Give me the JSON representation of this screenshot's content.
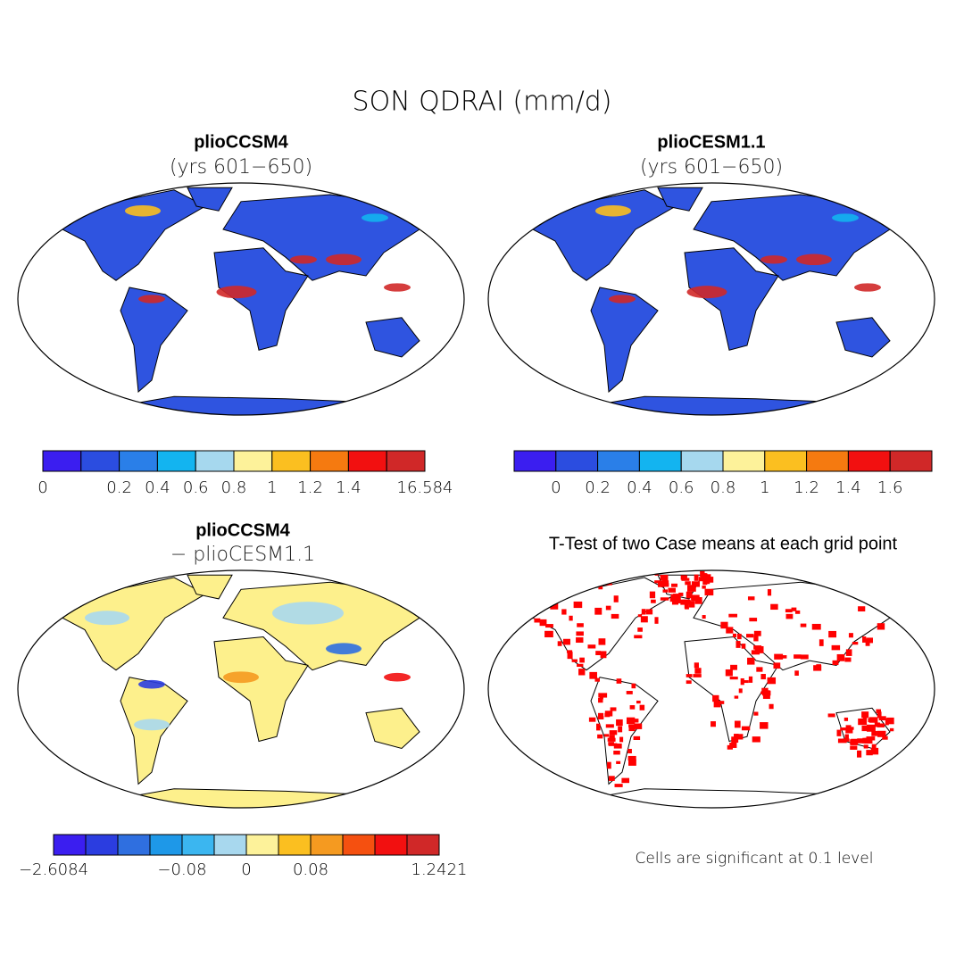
{
  "title": "SON QDRAI (mm/d)",
  "panels": [
    {
      "title": "plioCCSM4",
      "subtitle": "(yrs 601−650)"
    },
    {
      "title": "plioCESM1.1",
      "subtitle": "(yrs 601−650)"
    },
    {
      "title": "plioCCSM4",
      "subtitle": "− plioCESM1.1"
    },
    {
      "title": "T-Test of two Case means at each grid point"
    }
  ],
  "colorbars": [
    {
      "colors": [
        "#3b1ef0",
        "#2b4de0",
        "#2a7fe8",
        "#13b4f0",
        "#a6d8ee",
        "#fdf29a",
        "#fbbf20",
        "#f57a10",
        "#f21010",
        "#d02828"
      ],
      "labels": [
        "0",
        null,
        "0.2",
        "0.4",
        "0.6",
        "0.8",
        "1",
        "1.2",
        "1.4",
        null,
        "16.584"
      ]
    },
    {
      "colors": [
        "#3b1ef0",
        "#2b4de0",
        "#2a7fe8",
        "#13b4f0",
        "#a6d8ee",
        "#fdf29a",
        "#fbbf20",
        "#f57a10",
        "#f21010",
        "#d02828"
      ],
      "labels": [
        null,
        "0",
        "0.2",
        "0.4",
        "0.6",
        "0.8",
        "1",
        "1.2",
        "1.4",
        "1.6",
        null
      ]
    },
    {
      "colors": [
        "#3b1ef0",
        "#2b3de0",
        "#2f6fe0",
        "#1e98e8",
        "#3bb6f0",
        "#a8d8ee",
        "#fdf29a",
        "#fbbf20",
        "#f59a20",
        "#f55010",
        "#f21010",
        "#d02828"
      ],
      "labels": [
        "−2.6084",
        null,
        null,
        null,
        "−0.08",
        null,
        "0",
        null,
        "0.08",
        null,
        null,
        null,
        "1.2421"
      ]
    }
  ],
  "note": "Cells are significant at 0.1 level"
}
